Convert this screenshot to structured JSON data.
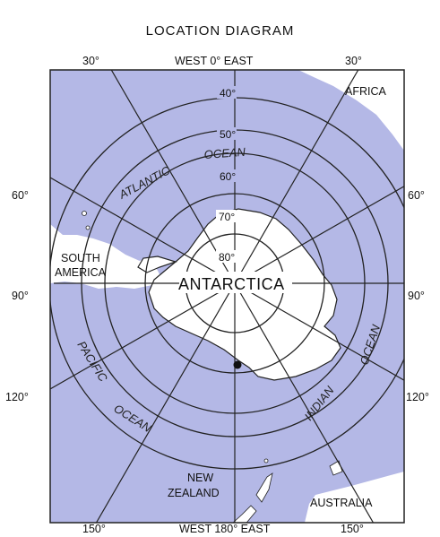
{
  "title": "LOCATION DIAGRAM",
  "colors": {
    "ocean": "#b4b8e6",
    "land": "#ffffff",
    "line": "#222222",
    "marker": "#111111"
  },
  "top_labels": {
    "left": "30°",
    "center": "WEST 0° EAST",
    "right": "30°"
  },
  "bottom_labels": {
    "left": "150°",
    "center": "WEST 180° EAST",
    "right": "150°"
  },
  "left_labels": {
    "l60": "60°",
    "l90": "90°",
    "l120": "120°"
  },
  "right_labels": {
    "r60": "60°",
    "r90": "90°",
    "r120": "120°"
  },
  "latitude_labels": {
    "lat40": "40°",
    "lat50": "50°",
    "lat60": "60°",
    "lat70": "70°",
    "lat80": "80°"
  },
  "place_labels": {
    "africa": "AFRICA",
    "south_america_1": "SOUTH",
    "south_america_2": "AMERICA",
    "antarctica": "ANTARCTICA",
    "new_zealand_1": "NEW",
    "new_zealand_2": "ZEALAND",
    "australia": "AUSTRALIA"
  },
  "ocean_labels": {
    "atlantic": "ATLANTIC",
    "ocean_atlantic": "OCEAN",
    "pacific": "PACIFIC",
    "ocean_pacific": "OCEAN",
    "indian": "INDIAN",
    "ocean_indian": "OCEAN"
  }
}
